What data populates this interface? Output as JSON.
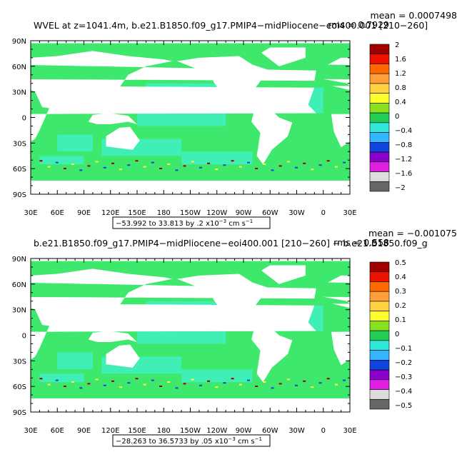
{
  "panels": [
    {
      "title": "WVEL at z=1041.4m, b.e21.B1850.f09_g17.PMIP4−midPliocene−eoi400.001 [210−260]",
      "mean": "mean = 0.0007498",
      "rms": "rms = 0.7929",
      "lat_labels": [
        "90N",
        "60N",
        "30N",
        "0",
        "30S",
        "60S",
        "90S"
      ],
      "lon_labels": [
        "30E",
        "60E",
        "90E",
        "120E",
        "150E",
        "180",
        "150W",
        "120W",
        "90W",
        "60W",
        "30W",
        "0",
        "30E"
      ],
      "colorbar": {
        "labels": [
          "2",
          "1.6",
          "1.2",
          "0.8",
          "0.4",
          "0",
          "−0.4",
          "−0.8",
          "−1.2",
          "−1.6",
          "−2"
        ]
      },
      "range": {
        "text": "−53.992 to 33.813 by .2 x10",
        "exponent": "−3",
        "unit": " cm s",
        "unit_exponent": "−1"
      }
    },
    {
      "title": "b.e21.B1850.f09_g17.PMIP4−midPliocene−eoi400.001 [210−260] − b.e21.B1850.f09_g",
      "mean": "mean = −0.001075",
      "rms": "rms = 0.558",
      "lat_labels": [
        "90N",
        "60N",
        "30N",
        "0",
        "30S",
        "60S",
        "90S"
      ],
      "lon_labels": [
        "30E",
        "60E",
        "90E",
        "120E",
        "150E",
        "180",
        "150W",
        "120W",
        "90W",
        "60W",
        "30W",
        "0",
        "30E"
      ],
      "colorbar": {
        "labels": [
          "0.5",
          "0.4",
          "0.3",
          "0.2",
          "0.1",
          "0",
          "−0.1",
          "−0.2",
          "−0.3",
          "−0.4",
          "−0.5"
        ]
      },
      "range": {
        "text": "−28.263 to 36.5733 by .05 x10",
        "exponent": "−3",
        "unit": " cm s",
        "unit_exponent": "−1"
      }
    }
  ]
}
